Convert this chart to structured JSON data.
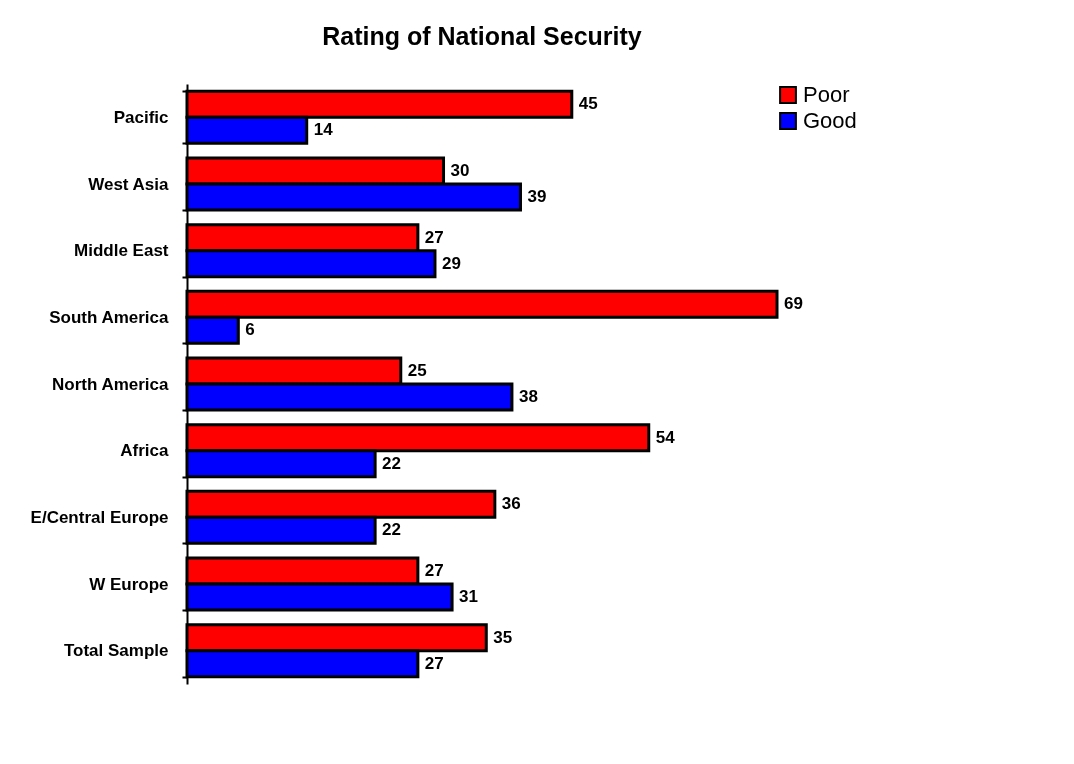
{
  "chart_data": {
    "type": "bar",
    "orientation": "horizontal",
    "title": "Rating of National Security",
    "categories": [
      "Pacific",
      "West Asia",
      "Middle East",
      "South America",
      "North America",
      "Africa",
      "E/Central Europe",
      "W Europe",
      "Total Sample"
    ],
    "series": [
      {
        "name": "Poor",
        "color": "#ff0000",
        "values": [
          45,
          30,
          27,
          69,
          25,
          54,
          36,
          27,
          35
        ]
      },
      {
        "name": "Good",
        "color": "#0000ff",
        "values": [
          14,
          39,
          29,
          6,
          38,
          22,
          22,
          31,
          27
        ]
      }
    ],
    "data_labels": true,
    "legend": "top right",
    "grid": false
  }
}
